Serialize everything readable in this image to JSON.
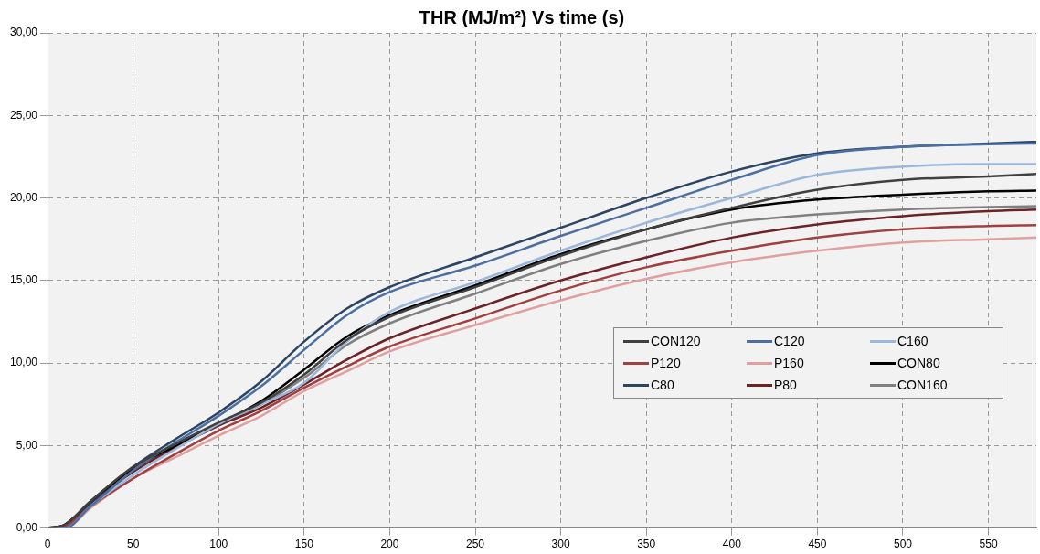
{
  "chart_data": {
    "type": "line",
    "title": "THR (MJ/m²) Vs time (s)",
    "x": [
      0,
      10,
      25,
      50,
      75,
      100,
      125,
      150,
      175,
      200,
      250,
      300,
      350,
      400,
      450,
      500,
      550,
      578
    ],
    "series": [
      {
        "name": "CON120",
        "color": "#404040",
        "values": [
          0,
          0.2,
          1.6,
          3.7,
          5.1,
          6.4,
          7.6,
          9.3,
          11.4,
          12.8,
          14.6,
          16.5,
          18.1,
          19.4,
          20.5,
          21.1,
          21.3,
          21.45
        ]
      },
      {
        "name": "C120",
        "color": "#4a6fa0",
        "values": [
          0,
          0,
          1.3,
          3.5,
          5.2,
          6.8,
          8.6,
          10.8,
          12.9,
          14.3,
          15.9,
          17.7,
          19.4,
          21.1,
          22.6,
          23.1,
          23.25,
          23.3
        ]
      },
      {
        "name": "C160",
        "color": "#9bb8dc",
        "values": [
          0,
          0,
          1.3,
          3.2,
          4.8,
          6.3,
          7.5,
          8.8,
          11.3,
          13.1,
          14.9,
          16.8,
          18.5,
          20.0,
          21.4,
          21.9,
          22.05,
          22.05
        ]
      },
      {
        "name": "P120",
        "color": "#a04040",
        "values": [
          0,
          0.1,
          1.3,
          3.0,
          4.5,
          5.9,
          7.1,
          8.5,
          9.8,
          11.0,
          12.7,
          14.4,
          15.8,
          16.8,
          17.6,
          18.1,
          18.3,
          18.35
        ]
      },
      {
        "name": "P160",
        "color": "#e0a0a0",
        "values": [
          0,
          0,
          1.2,
          3.0,
          4.3,
          5.6,
          6.8,
          8.3,
          9.5,
          10.7,
          12.3,
          13.8,
          15.1,
          16.1,
          16.8,
          17.3,
          17.5,
          17.6
        ]
      },
      {
        "name": "CON80",
        "color": "#000000",
        "values": [
          0,
          0.2,
          1.6,
          3.6,
          5.0,
          6.3,
          7.7,
          9.6,
          11.6,
          12.9,
          14.7,
          16.6,
          18.1,
          19.3,
          19.9,
          20.2,
          20.4,
          20.45
        ]
      },
      {
        "name": "C80",
        "color": "#2b4563",
        "values": [
          0,
          0.1,
          1.5,
          3.7,
          5.4,
          7.0,
          8.9,
          11.3,
          13.3,
          14.6,
          16.4,
          18.2,
          20.0,
          21.6,
          22.7,
          23.1,
          23.3,
          23.4
        ]
      },
      {
        "name": "P80",
        "color": "#6b2328",
        "values": [
          0,
          0.2,
          1.5,
          3.4,
          4.9,
          6.2,
          7.3,
          8.7,
          10.2,
          11.5,
          13.3,
          15.0,
          16.4,
          17.6,
          18.4,
          18.9,
          19.2,
          19.3
        ]
      },
      {
        "name": "CON160",
        "color": "#808080",
        "values": [
          0,
          0.2,
          1.6,
          3.7,
          5.1,
          6.3,
          7.5,
          9.1,
          11.1,
          12.4,
          14.2,
          16.0,
          17.4,
          18.5,
          19.0,
          19.3,
          19.45,
          19.5
        ]
      }
    ],
    "xlim": [
      0,
      578
    ],
    "xticks": [
      0,
      50,
      100,
      150,
      200,
      250,
      300,
      350,
      400,
      450,
      500,
      550
    ],
    "ylim": [
      0,
      30
    ],
    "yticks": [
      {
        "value": 0,
        "label": "0,00"
      },
      {
        "value": 5,
        "label": "5,00"
      },
      {
        "value": 10,
        "label": "10,00"
      },
      {
        "value": 15,
        "label": "15,00"
      },
      {
        "value": 20,
        "label": "20,00"
      },
      {
        "value": 25,
        "label": "25,00"
      },
      {
        "value": 30,
        "label": "30,00"
      }
    ],
    "grid": true,
    "legend": "right",
    "marker": "none",
    "line_style": "solid"
  }
}
